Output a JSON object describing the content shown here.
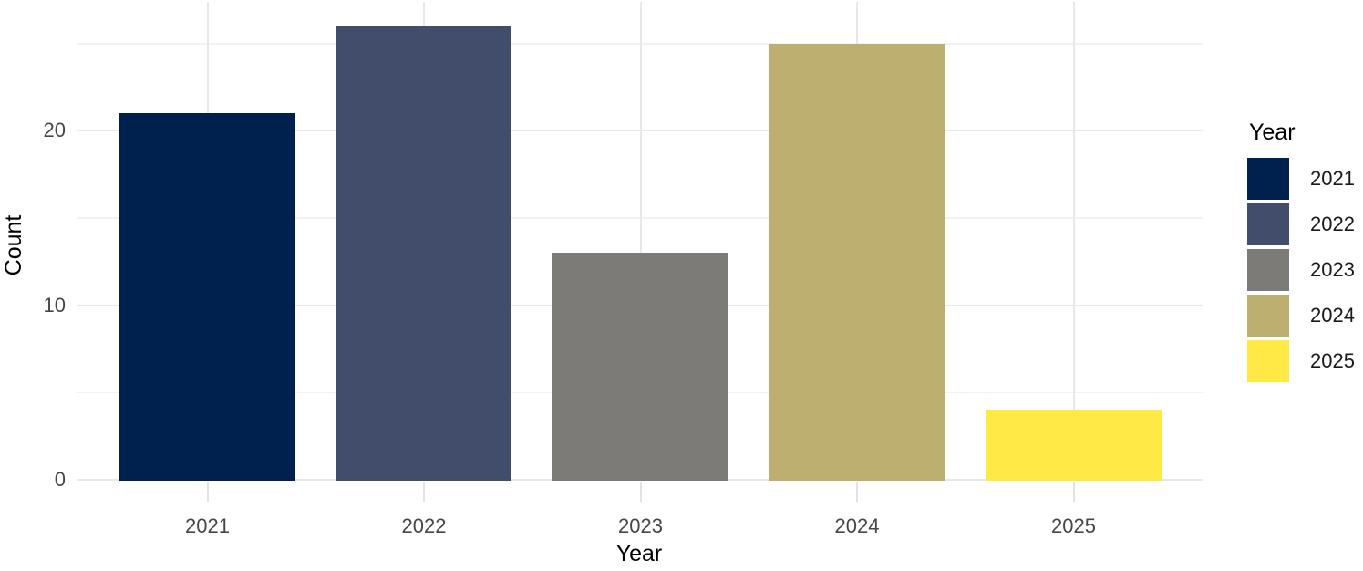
{
  "chart_data": {
    "type": "bar",
    "title": "",
    "xlabel": "Year",
    "ylabel": "Count",
    "categories": [
      "2021",
      "2022",
      "2023",
      "2024",
      "2025"
    ],
    "values": [
      21,
      26,
      13,
      25,
      4
    ],
    "colors": [
      "#00204D",
      "#414D6B",
      "#7C7B78",
      "#BCAF6F",
      "#FFE945"
    ],
    "ylim": [
      0,
      27.4
    ],
    "y_major_ticks": [
      0,
      10,
      20
    ],
    "y_minor_ticks": [
      5,
      15,
      25
    ],
    "grid": "horizontal major+minor, vertical major at category centers, light gray on white",
    "legend": {
      "title": "Year",
      "position": "right",
      "entries": [
        "2021",
        "2022",
        "2023",
        "2024",
        "2025"
      ]
    }
  },
  "style": {
    "background": "#FFFFFF",
    "grid_major": "#E8E8E8",
    "grid_minor": "#F2F2F2",
    "tick_mark": "#E2E2E2",
    "tick_label_color": "#474747",
    "title_color": "#000000"
  }
}
